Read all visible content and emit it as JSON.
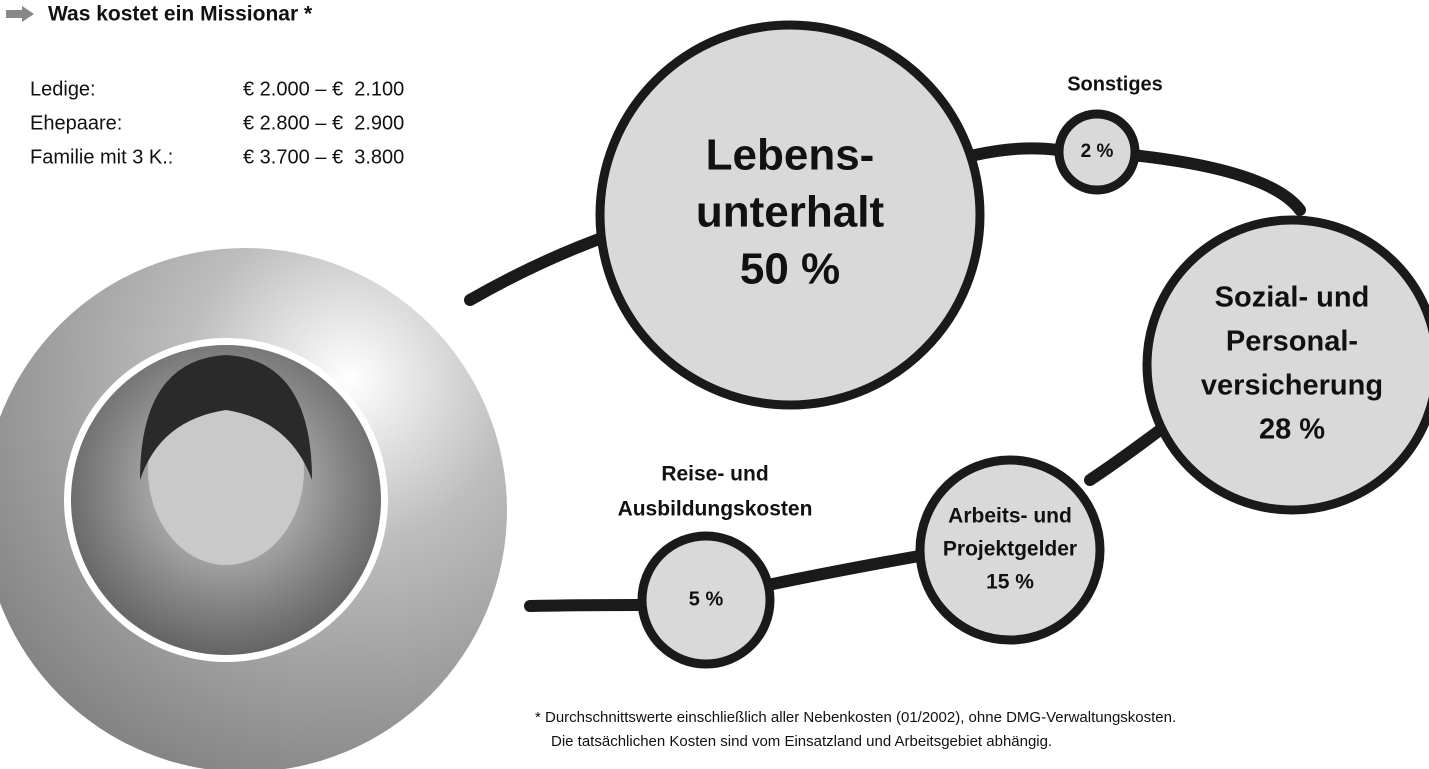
{
  "header": {
    "title": "Was kostet ein Missionar *"
  },
  "table": {
    "rows": [
      [
        "Ledige:",
        "€ 2.000 – €  2.100"
      ],
      [
        "Ehepaare:",
        "€ 2.800 – €  2.900"
      ],
      [
        "Familie mit 3 K.:",
        "€ 3.700 – €  3.800"
      ]
    ]
  },
  "nodes": [
    {
      "label": [
        "Lebens-",
        "unterhalt",
        "50 %"
      ]
    },
    {
      "caption": [
        "Sonstiges"
      ],
      "label": [
        "2 %"
      ]
    },
    {
      "label": [
        "Sozial- und",
        "Personal-",
        "versicherung",
        "28 %"
      ]
    },
    {
      "label": [
        "Arbeits- und",
        "Projektgelder",
        "15 %"
      ]
    },
    {
      "caption": [
        "Reise- und",
        "Ausbildungskosten"
      ],
      "label": [
        "5 %"
      ]
    }
  ],
  "footnote": [
    "*  Durchschnittswerte einschließlich aller Nebenkosten (01/2002), ohne DMG-Verwaltungskosten.",
    "Die tatsächlichen Kosten sind vom Einsatzland und Arbeitsgebiet abhängig."
  ]
}
